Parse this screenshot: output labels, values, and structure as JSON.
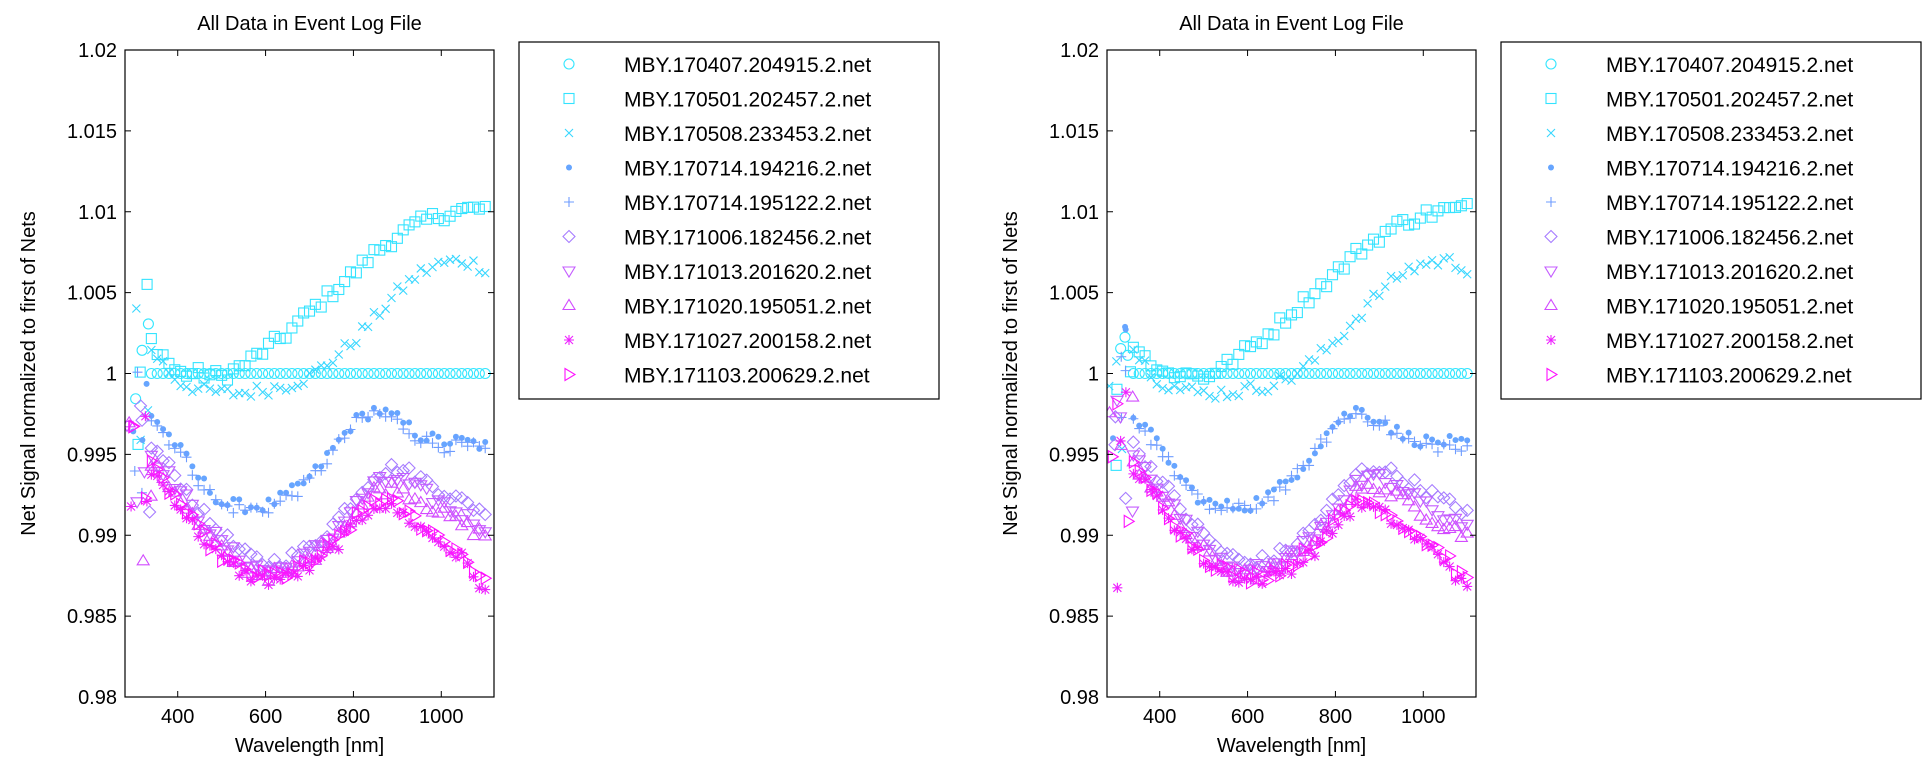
{
  "chart_data": [
    {
      "type": "scatter",
      "title": "All Data in Event Log File",
      "xlabel": "Wavelength [nm]",
      "ylabel": "Net Signal normalized to first of Nets",
      "xlim": [
        280,
        1120
      ],
      "ylim": [
        0.98,
        1.02
      ],
      "xticks": [
        400,
        600,
        800,
        1000
      ],
      "yticks": [
        0.98,
        0.985,
        0.99,
        0.995,
        1,
        1.005,
        1.01,
        1.015,
        1.02
      ],
      "ytick_labels": [
        "0.98",
        "0.985",
        "0.99",
        "0.995",
        "1",
        "1.005",
        "1.01",
        "1.015",
        "1.02"
      ],
      "grid": false,
      "legend_position": "outside-right",
      "series": [
        {
          "name": "MBY.170407.204915.2.net",
          "marker": "circle",
          "color": "#33e6ff",
          "x": [
            300,
            320,
            340,
            400,
            500,
            600,
            700,
            800,
            900,
            1000,
            1100
          ],
          "y": [
            1.0,
            1.0,
            1.0,
            1.0,
            1.0,
            1.0,
            1.0,
            1.0,
            1.0,
            1.0,
            1.0
          ]
        },
        {
          "name": "MBY.170501.202457.2.net",
          "marker": "square",
          "color": "#33e3ff",
          "x": [
            300,
            320,
            340,
            400,
            450,
            500,
            550,
            600,
            650,
            700,
            750,
            800,
            850,
            900,
            950,
            1000,
            1050,
            1100
          ],
          "y": [
            0.999,
            1.001,
            1.002,
            1.0,
            1.0,
            0.9998,
            1.0005,
            1.0015,
            1.0025,
            1.0038,
            1.005,
            1.0062,
            1.0075,
            1.0085,
            1.0093,
            1.0098,
            1.0101,
            1.0102
          ]
        },
        {
          "name": "MBY.170508.233453.2.net",
          "marker": "x",
          "color": "#38d7ff",
          "x": [
            300,
            320,
            340,
            400,
            450,
            500,
            550,
            600,
            650,
            700,
            750,
            800,
            850,
            900,
            950,
            1000,
            1050,
            1100
          ],
          "y": [
            0.999,
            1.001,
            1.0015,
            0.9995,
            0.999,
            0.9988,
            0.9988,
            0.999,
            0.9993,
            0.9998,
            1.0008,
            1.002,
            1.0035,
            1.005,
            1.0062,
            1.0068,
            1.007,
            1.0065
          ]
        },
        {
          "name": "MBY.170714.194216.2.net",
          "marker": "dot",
          "color": "#66a5ff",
          "x": [
            300,
            320,
            340,
            400,
            450,
            500,
            550,
            600,
            650,
            700,
            750,
            800,
            850,
            900,
            950,
            1000,
            1050,
            1100
          ],
          "y": [
            0.9965,
            0.998,
            0.9975,
            0.9955,
            0.9935,
            0.992,
            0.9918,
            0.9918,
            0.9925,
            0.9935,
            0.9952,
            0.997,
            0.9978,
            0.9972,
            0.9962,
            0.9958,
            0.9958,
            0.9955
          ]
        },
        {
          "name": "MBY.170714.195122.2.net",
          "marker": "plus",
          "color": "#6e9cff",
          "x": [
            300,
            320,
            340,
            400,
            450,
            500,
            550,
            600,
            650,
            700,
            750,
            800,
            850,
            900,
            950,
            1000,
            1050,
            1100
          ],
          "y": [
            0.9962,
            0.9978,
            0.9972,
            0.9953,
            0.9933,
            0.9918,
            0.9916,
            0.9916,
            0.9923,
            0.9933,
            0.995,
            0.9968,
            0.9976,
            0.997,
            0.996,
            0.9955,
            0.9955,
            0.9952
          ]
        },
        {
          "name": "MBY.171006.182456.2.net",
          "marker": "diamond",
          "color": "#a67cff",
          "x": [
            300,
            320,
            340,
            400,
            450,
            500,
            550,
            600,
            650,
            700,
            750,
            800,
            850,
            900,
            950,
            1000,
            1050,
            1100
          ],
          "y": [
            0.994,
            0.996,
            0.9955,
            0.9935,
            0.9915,
            0.99,
            0.9888,
            0.9882,
            0.9885,
            0.9892,
            0.9905,
            0.9922,
            0.9938,
            0.9942,
            0.9935,
            0.9928,
            0.992,
            0.9915
          ]
        },
        {
          "name": "MBY.171013.201620.2.net",
          "marker": "triangle-down",
          "color": "#c45cff",
          "x": [
            300,
            320,
            340,
            400,
            450,
            500,
            550,
            600,
            650,
            700,
            750,
            800,
            850,
            900,
            950,
            1000,
            1050,
            1100
          ],
          "y": [
            0.9935,
            0.9955,
            0.995,
            0.993,
            0.991,
            0.9895,
            0.9884,
            0.9878,
            0.988,
            0.9888,
            0.99,
            0.9917,
            0.9932,
            0.9935,
            0.9928,
            0.992,
            0.9912,
            0.9905
          ]
        },
        {
          "name": "MBY.171020.195051.2.net",
          "marker": "triangle-up",
          "color": "#d24cff",
          "x": [
            300,
            320,
            340,
            400,
            450,
            500,
            550,
            600,
            650,
            700,
            750,
            800,
            850,
            900,
            950,
            1000,
            1050,
            1100
          ],
          "y": [
            0.993,
            0.995,
            0.9945,
            0.9925,
            0.9905,
            0.989,
            0.988,
            0.9875,
            0.9877,
            0.9885,
            0.9897,
            0.9913,
            0.9928,
            0.993,
            0.9922,
            0.9914,
            0.9906,
            0.99
          ]
        },
        {
          "name": "MBY.171027.200158.2.net",
          "marker": "asterisk",
          "color": "#ee22ff",
          "x": [
            300,
            320,
            340,
            400,
            450,
            500,
            550,
            600,
            650,
            700,
            750,
            800,
            850,
            900,
            950,
            1000,
            1050,
            1100
          ],
          "y": [
            0.9925,
            0.9945,
            0.994,
            0.992,
            0.99,
            0.9885,
            0.9876,
            0.9872,
            0.9874,
            0.988,
            0.989,
            0.9905,
            0.992,
            0.9915,
            0.9905,
            0.9895,
            0.9885,
            0.9865
          ]
        },
        {
          "name": "MBY.171103.200629.2.net",
          "marker": "triangle-right",
          "color": "#ff11ff",
          "x": [
            300,
            320,
            340,
            400,
            450,
            500,
            550,
            600,
            650,
            700,
            750,
            800,
            850,
            900,
            950,
            1000,
            1050,
            1100
          ],
          "y": [
            0.9928,
            0.9948,
            0.9942,
            0.9922,
            0.9902,
            0.9887,
            0.9878,
            0.9874,
            0.9876,
            0.9882,
            0.9893,
            0.9908,
            0.9923,
            0.9918,
            0.9908,
            0.9898,
            0.9888,
            0.987
          ]
        }
      ]
    },
    {
      "type": "scatter",
      "title": "All Data in Event Log File",
      "xlabel": "Wavelength [nm]",
      "ylabel": "Net Signal normalized to first of Nets",
      "xlim": [
        280,
        1120
      ],
      "ylim": [
        0.98,
        1.02
      ],
      "xticks": [
        400,
        600,
        800,
        1000
      ],
      "yticks": [
        0.98,
        0.985,
        0.99,
        0.995,
        1,
        1.005,
        1.01,
        1.015,
        1.02
      ],
      "ytick_labels": [
        "0.98",
        "0.985",
        "0.99",
        "0.995",
        "1",
        "1.005",
        "1.01",
        "1.015",
        "1.02"
      ],
      "grid": false,
      "legend_position": "outside-right",
      "series": [
        {
          "name": "MBY.170407.204915.2.net",
          "marker": "circle",
          "color": "#33e6ff",
          "x": [
            300,
            320,
            340,
            400,
            500,
            600,
            700,
            800,
            900,
            1000,
            1100
          ],
          "y": [
            1.0,
            1.0,
            1.0,
            1.0,
            1.0,
            1.0,
            1.0,
            1.0,
            1.0,
            1.0,
            1.0
          ]
        },
        {
          "name": "MBY.170501.202457.2.net",
          "marker": "square",
          "color": "#33e3ff",
          "x": [
            300,
            320,
            340,
            400,
            450,
            500,
            550,
            600,
            650,
            700,
            750,
            800,
            850,
            900,
            950,
            1000,
            1050,
            1100
          ],
          "y": [
            0.999,
            1.001,
            1.002,
            1.0,
            1.0,
            0.9998,
            1.0005,
            1.0015,
            1.0025,
            1.0038,
            1.005,
            1.0062,
            1.0075,
            1.0085,
            1.0093,
            1.0098,
            1.0101,
            1.0102
          ]
        },
        {
          "name": "MBY.170508.233453.2.net",
          "marker": "x",
          "color": "#38d7ff",
          "x": [
            300,
            320,
            340,
            400,
            450,
            500,
            550,
            600,
            650,
            700,
            750,
            800,
            850,
            900,
            950,
            1000,
            1050,
            1100
          ],
          "y": [
            0.999,
            1.001,
            1.0015,
            0.9995,
            0.999,
            0.9988,
            0.9988,
            0.999,
            0.9993,
            0.9998,
            1.0008,
            1.002,
            1.0035,
            1.005,
            1.0062,
            1.0068,
            1.007,
            1.0065
          ]
        },
        {
          "name": "MBY.170714.194216.2.net",
          "marker": "dot",
          "color": "#66a5ff",
          "x": [
            300,
            320,
            340,
            400,
            450,
            500,
            550,
            600,
            650,
            700,
            750,
            800,
            850,
            900,
            950,
            1000,
            1050,
            1100
          ],
          "y": [
            0.9965,
            0.998,
            0.9975,
            0.9955,
            0.9935,
            0.992,
            0.9918,
            0.9918,
            0.9925,
            0.9935,
            0.9952,
            0.997,
            0.9978,
            0.9972,
            0.9962,
            0.9958,
            0.9958,
            0.9955
          ]
        },
        {
          "name": "MBY.170714.195122.2.net",
          "marker": "plus",
          "color": "#6e9cff",
          "x": [
            300,
            320,
            340,
            400,
            450,
            500,
            550,
            600,
            650,
            700,
            750,
            800,
            850,
            900,
            950,
            1000,
            1050,
            1100
          ],
          "y": [
            0.9962,
            0.9978,
            0.9972,
            0.9953,
            0.9933,
            0.9918,
            0.9916,
            0.9916,
            0.9923,
            0.9933,
            0.995,
            0.9968,
            0.9976,
            0.997,
            0.996,
            0.9955,
            0.9955,
            0.9952
          ]
        },
        {
          "name": "MBY.171006.182456.2.net",
          "marker": "diamond",
          "color": "#a67cff",
          "x": [
            300,
            320,
            340,
            400,
            450,
            500,
            550,
            600,
            650,
            700,
            750,
            800,
            850,
            900,
            950,
            1000,
            1050,
            1100
          ],
          "y": [
            0.994,
            0.996,
            0.9955,
            0.9935,
            0.9915,
            0.99,
            0.9888,
            0.9882,
            0.9885,
            0.9892,
            0.9905,
            0.9922,
            0.9938,
            0.9942,
            0.9935,
            0.9928,
            0.992,
            0.9915
          ]
        },
        {
          "name": "MBY.171013.201620.2.net",
          "marker": "triangle-down",
          "color": "#c45cff",
          "x": [
            300,
            320,
            340,
            400,
            450,
            500,
            550,
            600,
            650,
            700,
            750,
            800,
            850,
            900,
            950,
            1000,
            1050,
            1100
          ],
          "y": [
            0.9935,
            0.9955,
            0.995,
            0.993,
            0.991,
            0.9895,
            0.9884,
            0.9878,
            0.988,
            0.9888,
            0.99,
            0.9917,
            0.9932,
            0.9935,
            0.9928,
            0.992,
            0.9912,
            0.9905
          ]
        },
        {
          "name": "MBY.171020.195051.2.net",
          "marker": "triangle-up",
          "color": "#d24cff",
          "x": [
            300,
            320,
            340,
            400,
            450,
            500,
            550,
            600,
            650,
            700,
            750,
            800,
            850,
            900,
            950,
            1000,
            1050,
            1100
          ],
          "y": [
            0.993,
            0.995,
            0.9945,
            0.9925,
            0.9905,
            0.989,
            0.988,
            0.9875,
            0.9877,
            0.9885,
            0.9897,
            0.9913,
            0.9928,
            0.993,
            0.9922,
            0.9914,
            0.9906,
            0.99
          ]
        },
        {
          "name": "MBY.171027.200158.2.net",
          "marker": "asterisk",
          "color": "#ee22ff",
          "x": [
            300,
            320,
            340,
            400,
            450,
            500,
            550,
            600,
            650,
            700,
            750,
            800,
            850,
            900,
            950,
            1000,
            1050,
            1100
          ],
          "y": [
            0.9925,
            0.9945,
            0.994,
            0.992,
            0.99,
            0.9885,
            0.9876,
            0.9872,
            0.9874,
            0.988,
            0.989,
            0.9905,
            0.992,
            0.9915,
            0.9905,
            0.9895,
            0.9885,
            0.9865
          ]
        },
        {
          "name": "MBY.171103.200629.2.net",
          "marker": "triangle-right",
          "color": "#ff11ff",
          "x": [
            300,
            320,
            340,
            400,
            450,
            500,
            550,
            600,
            650,
            700,
            750,
            800,
            850,
            900,
            950,
            1000,
            1050,
            1100
          ],
          "y": [
            0.9928,
            0.9948,
            0.9942,
            0.9922,
            0.9902,
            0.9887,
            0.9878,
            0.9874,
            0.9876,
            0.9882,
            0.9893,
            0.9908,
            0.9923,
            0.9918,
            0.9908,
            0.9898,
            0.9888,
            0.987
          ]
        }
      ]
    }
  ]
}
